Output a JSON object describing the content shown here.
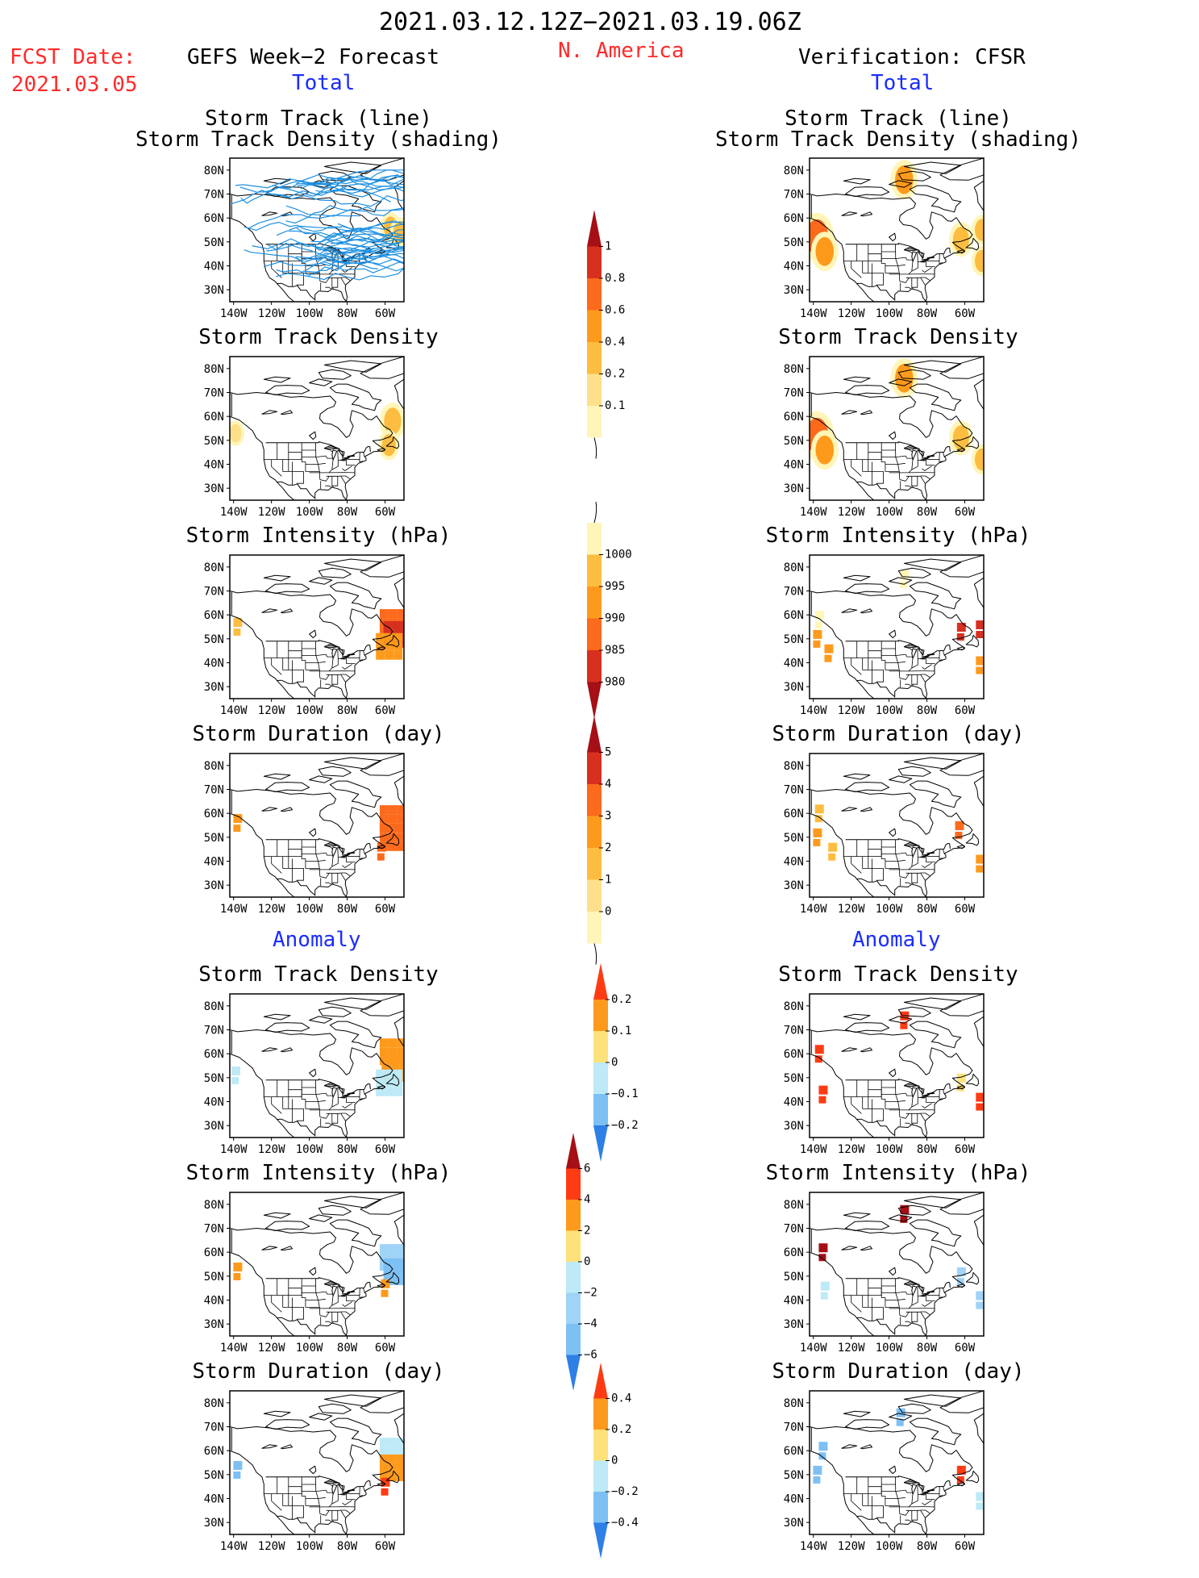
{
  "header": {
    "period": "2021.03.12.12Z−2021.03.19.06Z",
    "region": "N. America",
    "fcst_label": "FCST Date:",
    "fcst_date": "2021.03.05",
    "left_title": "GEFS Week−2 Forecast",
    "right_title": "Verification: CFSR",
    "total_label": "Total",
    "anomaly_label": "Anomaly"
  },
  "panels": {
    "track_line_1": "Storm Track (line)",
    "track_line_2": "Storm Track Density (shading)",
    "density": "Storm Track Density",
    "intensity": "Storm Intensity (hPa)",
    "duration": "Storm Duration (day)"
  },
  "map_axes": {
    "lat_labels": [
      "80N",
      "70N",
      "60N",
      "50N",
      "40N",
      "30N"
    ],
    "lon_labels": [
      "140W",
      "120W",
      "100W",
      "80W",
      "60W"
    ]
  },
  "chart_data": {
    "type": "heatmap",
    "region": "N. America",
    "x_range": [
      "140W",
      "50W"
    ],
    "y_range": [
      "25N",
      "85N"
    ],
    "colorbars": [
      {
        "id": "density_total",
        "ticks": [
          "1",
          "0.8",
          "0.6",
          "0.4",
          "0.2",
          "0.1"
        ],
        "colors": [
          "#a50f15",
          "#d7301f",
          "#fc6a1c",
          "#fd9a1c",
          "#fdbd40",
          "#fee08b",
          "#fff5b8"
        ]
      },
      {
        "id": "intensity_total",
        "ticks": [
          "1000",
          "995",
          "990",
          "985",
          "980"
        ],
        "colors": [
          "#fff5b8",
          "#fdbd40",
          "#fd9a1c",
          "#fc6a1c",
          "#d7301f",
          "#a50f15"
        ]
      },
      {
        "id": "duration_total",
        "ticks": [
          "5",
          "4",
          "3",
          "2",
          "1",
          "0"
        ],
        "colors": [
          "#a50f15",
          "#d7301f",
          "#fc6a1c",
          "#fd9a1c",
          "#fdbd40",
          "#fee08b",
          "#fff5b8"
        ]
      },
      {
        "id": "density_anom",
        "ticks": [
          "0.2",
          "0.1",
          "0",
          "−0.1",
          "−0.2"
        ],
        "colors": [
          "#ff3b14",
          "#fd9a1c",
          "#fde27a",
          "#bdeaf6",
          "#7cc0f4",
          "#2e7fe6"
        ]
      },
      {
        "id": "intensity_anom",
        "ticks": [
          "6",
          "4",
          "2",
          "0",
          "−2",
          "−4",
          "−6"
        ],
        "colors": [
          "#a50f15",
          "#ff3b14",
          "#fd9a1c",
          "#fde27a",
          "#bdeaf6",
          "#9fd3f7",
          "#7cc0f4",
          "#2e7fe6"
        ]
      },
      {
        "id": "duration_anom",
        "ticks": [
          "0.4",
          "0.2",
          "0",
          "−0.2",
          "−0.4"
        ],
        "colors": [
          "#ff3b14",
          "#fd9a1c",
          "#fde27a",
          "#bdeaf6",
          "#7cc0f4",
          "#2e7fe6"
        ]
      }
    ],
    "maps": [
      {
        "id": "fcst_total_track",
        "blobs": [
          {
            "lon": -57,
            "lat": 56,
            "value": 0.2
          },
          {
            "lon": -52,
            "lat": 54,
            "value": 0.2
          }
        ],
        "tracks": true
      },
      {
        "id": "fcst_total_density",
        "blobs": [
          {
            "lon": -56,
            "lat": 58,
            "value": 0.35
          },
          {
            "lon": -58,
            "lat": 48,
            "value": 0.2
          },
          {
            "lon": -139,
            "lat": 53,
            "value": 0.1
          }
        ]
      },
      {
        "id": "fcst_total_intensity",
        "cells": [
          {
            "lon": -138,
            "lat": 57,
            "value": 995
          },
          {
            "lon": -56,
            "lat": 57,
            "value": 985
          },
          {
            "lon": -54,
            "lat": 52,
            "value": 980
          },
          {
            "lon": -58,
            "lat": 47,
            "value": 990
          }
        ]
      },
      {
        "id": "fcst_total_duration",
        "cells": [
          {
            "lon": -138,
            "lat": 58,
            "value": 2
          },
          {
            "lon": -56,
            "lat": 58,
            "value": 3
          },
          {
            "lon": -56,
            "lat": 50,
            "value": 3
          },
          {
            "lon": -62,
            "lat": 46,
            "value": 3
          }
        ]
      },
      {
        "id": "verif_total_track",
        "blobs": [
          {
            "lon": -138,
            "lat": 52,
            "value": 0.6
          },
          {
            "lon": -134,
            "lat": 46,
            "value": 0.4
          },
          {
            "lon": -92,
            "lat": 76,
            "value": 0.4
          },
          {
            "lon": -62,
            "lat": 51,
            "value": 0.3
          },
          {
            "lon": -51,
            "lat": 42,
            "value": 0.2
          },
          {
            "lon": -51,
            "lat": 55,
            "value": 0.2
          }
        ]
      },
      {
        "id": "verif_total_density",
        "blobs": [
          {
            "lon": -138,
            "lat": 52,
            "value": 0.6
          },
          {
            "lon": -134,
            "lat": 46,
            "value": 0.4
          },
          {
            "lon": -92,
            "lat": 76,
            "value": 0.4
          },
          {
            "lon": -62,
            "lat": 51,
            "value": 0.3
          },
          {
            "lon": -51,
            "lat": 42,
            "value": 0.2
          }
        ]
      },
      {
        "id": "verif_total_intensity",
        "cells": [
          {
            "lon": -137,
            "lat": 60,
            "value": 1000
          },
          {
            "lon": -138,
            "lat": 52,
            "value": 990
          },
          {
            "lon": -132,
            "lat": 46,
            "value": 990
          },
          {
            "lon": -62,
            "lat": 55,
            "value": 980
          },
          {
            "lon": -52,
            "lat": 56,
            "value": 980
          },
          {
            "lon": -52,
            "lat": 41,
            "value": 990
          },
          {
            "lon": -92,
            "lat": 77,
            "value": 1000
          }
        ]
      },
      {
        "id": "verif_total_duration",
        "cells": [
          {
            "lon": -137,
            "lat": 62,
            "value": 1
          },
          {
            "lon": -138,
            "lat": 52,
            "value": 2
          },
          {
            "lon": -130,
            "lat": 46,
            "value": 1
          },
          {
            "lon": -63,
            "lat": 55,
            "value": 3
          },
          {
            "lon": -52,
            "lat": 41,
            "value": 2
          }
        ]
      },
      {
        "id": "fcst_anom_density",
        "cells": [
          {
            "lon": -56,
            "lat": 61,
            "value": 0.1
          },
          {
            "lon": -55,
            "lat": 54,
            "value": 0.1
          },
          {
            "lon": -58,
            "lat": 48,
            "value": -0.05
          },
          {
            "lon": -139,
            "lat": 53,
            "value": -0.05
          }
        ]
      },
      {
        "id": "fcst_anom_intensity",
        "cells": [
          {
            "lon": -56,
            "lat": 58,
            "value": -4
          },
          {
            "lon": -54,
            "lat": 52,
            "value": -6
          },
          {
            "lon": -60,
            "lat": 47,
            "value": 2
          },
          {
            "lon": -138,
            "lat": 54,
            "value": 2
          }
        ]
      },
      {
        "id": "fcst_anom_duration",
        "cells": [
          {
            "lon": -56,
            "lat": 60,
            "value": -0.2
          },
          {
            "lon": -56,
            "lat": 53,
            "value": 0.2
          },
          {
            "lon": -60,
            "lat": 47,
            "value": 0.4
          },
          {
            "lon": -138,
            "lat": 54,
            "value": -0.4
          }
        ]
      },
      {
        "id": "verif_anom_density",
        "cells": [
          {
            "lon": -92,
            "lat": 76,
            "value": 0.2
          },
          {
            "lon": -137,
            "lat": 62,
            "value": 0.2
          },
          {
            "lon": -135,
            "lat": 45,
            "value": 0.2
          },
          {
            "lon": -62,
            "lat": 50,
            "value": 0.05
          },
          {
            "lon": -52,
            "lat": 42,
            "value": 0.2
          }
        ]
      },
      {
        "id": "verif_anom_intensity",
        "cells": [
          {
            "lon": -92,
            "lat": 78,
            "value": 6
          },
          {
            "lon": -135,
            "lat": 62,
            "value": 6
          },
          {
            "lon": -134,
            "lat": 46,
            "value": -2
          },
          {
            "lon": -62,
            "lat": 52,
            "value": -4
          },
          {
            "lon": -52,
            "lat": 42,
            "value": -4
          }
        ]
      },
      {
        "id": "verif_anom_duration",
        "cells": [
          {
            "lon": -94,
            "lat": 76,
            "value": -0.4
          },
          {
            "lon": -135,
            "lat": 62,
            "value": -0.4
          },
          {
            "lon": -138,
            "lat": 52,
            "value": -0.4
          },
          {
            "lon": -62,
            "lat": 52,
            "value": 0.4
          },
          {
            "lon": -52,
            "lat": 41,
            "value": -0.2
          }
        ]
      }
    ]
  }
}
